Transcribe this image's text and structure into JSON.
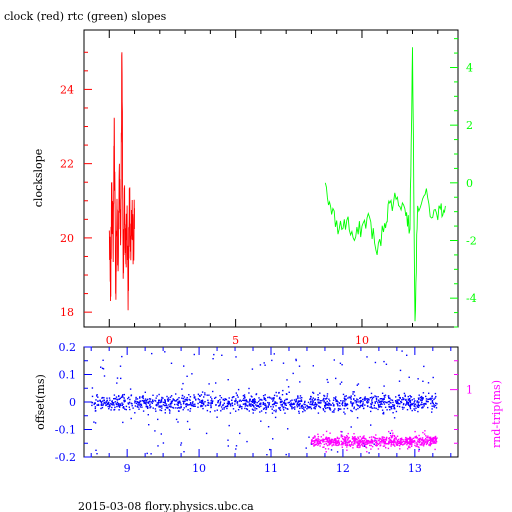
{
  "title": "clock (red) rtc (green) slopes",
  "footer": "2015-03-08 flory.physics.ubc.ca",
  "colors": {
    "clock": "#ff0000",
    "rtc": "#00ff00",
    "offset": "#0000ff",
    "rndtrip": "#ff00ff",
    "axes": "#000000"
  },
  "chart_data": [
    {
      "type": "line",
      "title": "clock (red) rtc (green) slopes",
      "xlabel": "",
      "ylabel": "clockslope",
      "xlim": [
        -1.0,
        13.8
      ],
      "ylim": [
        17.6,
        25.6
      ],
      "x_ticks": [
        0,
        5,
        10
      ],
      "y_ticks": [
        18,
        20,
        22,
        24
      ],
      "y2label": "",
      "y2lim": [
        -5.0,
        5.3
      ],
      "y2_ticks": [
        -4,
        -2,
        0,
        2,
        4
      ],
      "series": [
        {
          "color": "#ff0000",
          "axis": "left",
          "x": [
            0.0,
            0.05,
            0.1,
            0.15,
            0.2,
            0.25,
            0.3,
            0.35,
            0.4,
            0.45,
            0.5,
            0.55,
            0.6,
            0.65,
            0.7,
            0.75,
            0.8,
            0.85,
            0.9,
            0.95,
            1.0
          ],
          "y": [
            20.2,
            18.3,
            21.5,
            19.6,
            23.2,
            18.5,
            20.8,
            19.1,
            22.0,
            19.8,
            25.0,
            18.9,
            21.2,
            19.5,
            20.6,
            18.6,
            21.0,
            19.4,
            20.5,
            19.7,
            20.8
          ]
        },
        {
          "color": "#00ff00",
          "axis": "right",
          "x": [
            8.55,
            8.8,
            9.1,
            9.4,
            9.7,
            10.0,
            10.3,
            10.6,
            10.9,
            11.1,
            11.4,
            11.7,
            11.9,
            12.0,
            12.1,
            12.2,
            12.5,
            12.8,
            13.1,
            13.3
          ],
          "y": [
            0.0,
            -1.1,
            -1.6,
            -1.3,
            -2.0,
            -1.5,
            -1.2,
            -2.5,
            -1.4,
            -0.7,
            -0.5,
            -0.9,
            -1.6,
            4.7,
            -4.8,
            -0.8,
            -0.4,
            -1.2,
            -0.9,
            -0.8
          ]
        }
      ]
    },
    {
      "type": "scatter",
      "xlabel": "",
      "ylabel": "offset(ms)",
      "xlim": [
        8.4,
        13.6
      ],
      "ylim": [
        -0.2,
        0.2
      ],
      "x_ticks": [
        9,
        10,
        11,
        12,
        13
      ],
      "y_ticks": [
        -0.2,
        -0.1,
        0,
        0.1,
        0.2
      ],
      "y2label": "rnd-trip(ms)",
      "y2_ticks": [
        1
      ],
      "series": [
        {
          "color": "#0000ff",
          "axis": "left",
          "x_range": [
            8.5,
            13.3
          ],
          "center": 0.0,
          "spread": 0.03
        },
        {
          "color": "#ff00ff",
          "axis": "right",
          "x_range": [
            11.55,
            13.3
          ],
          "center": -0.14,
          "spread": 0.02
        }
      ]
    }
  ]
}
